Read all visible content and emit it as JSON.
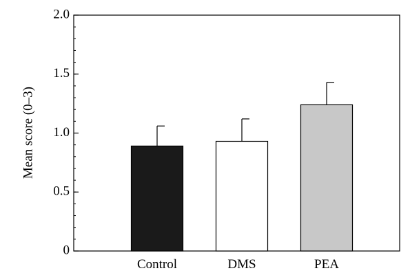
{
  "chart_data": {
    "type": "bar",
    "title": "",
    "xlabel": "",
    "ylabel": "Mean score (0–3)",
    "categories": [
      "Control",
      "DMS",
      "PEA"
    ],
    "values": [
      0.89,
      0.93,
      1.24
    ],
    "errors": [
      0.17,
      0.19,
      0.19
    ],
    "bar_colors": [
      "#1a1a1a",
      "#ffffff",
      "#c8c8c8"
    ],
    "ylim": [
      0,
      2.0
    ],
    "yticks": [
      0,
      0.5,
      1.0,
      1.5,
      2.0
    ],
    "ytick_labels": [
      "0",
      "0.5",
      "1.0",
      "1.5",
      "2.0"
    ],
    "minor_ticks_per_major": 5,
    "grid": false,
    "legend": "none"
  }
}
